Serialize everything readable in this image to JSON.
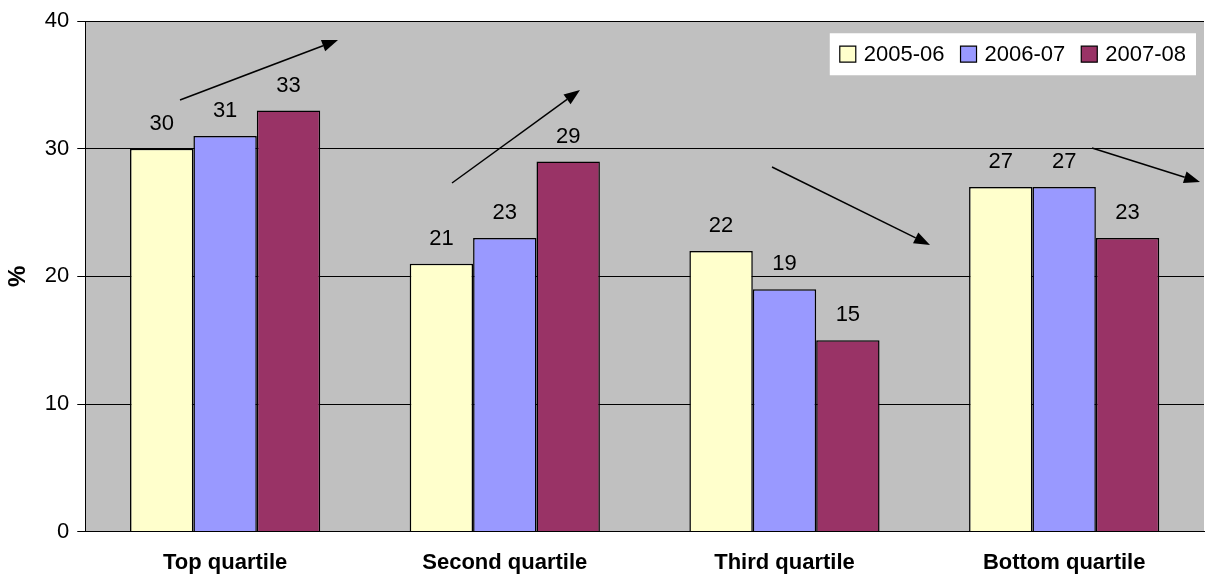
{
  "chart_data": {
    "type": "bar",
    "ylabel": "%",
    "categories": [
      "Top quartile",
      "Second quartile",
      "Third quartile",
      "Bottom quartile"
    ],
    "series": [
      {
        "name": "2005-06",
        "color": "#ffffcc",
        "values": [
          30,
          21,
          22,
          27
        ]
      },
      {
        "name": "2006-07",
        "color": "#9999ff",
        "values": [
          31,
          23,
          19,
          27
        ]
      },
      {
        "name": "2007-08",
        "color": "#993366",
        "values": [
          33,
          29,
          15,
          23
        ]
      }
    ],
    "ylim": [
      0,
      40
    ],
    "yticks": [
      0,
      10,
      20,
      30,
      40
    ],
    "grid": "y",
    "legend": "top right",
    "data_labels": true
  }
}
